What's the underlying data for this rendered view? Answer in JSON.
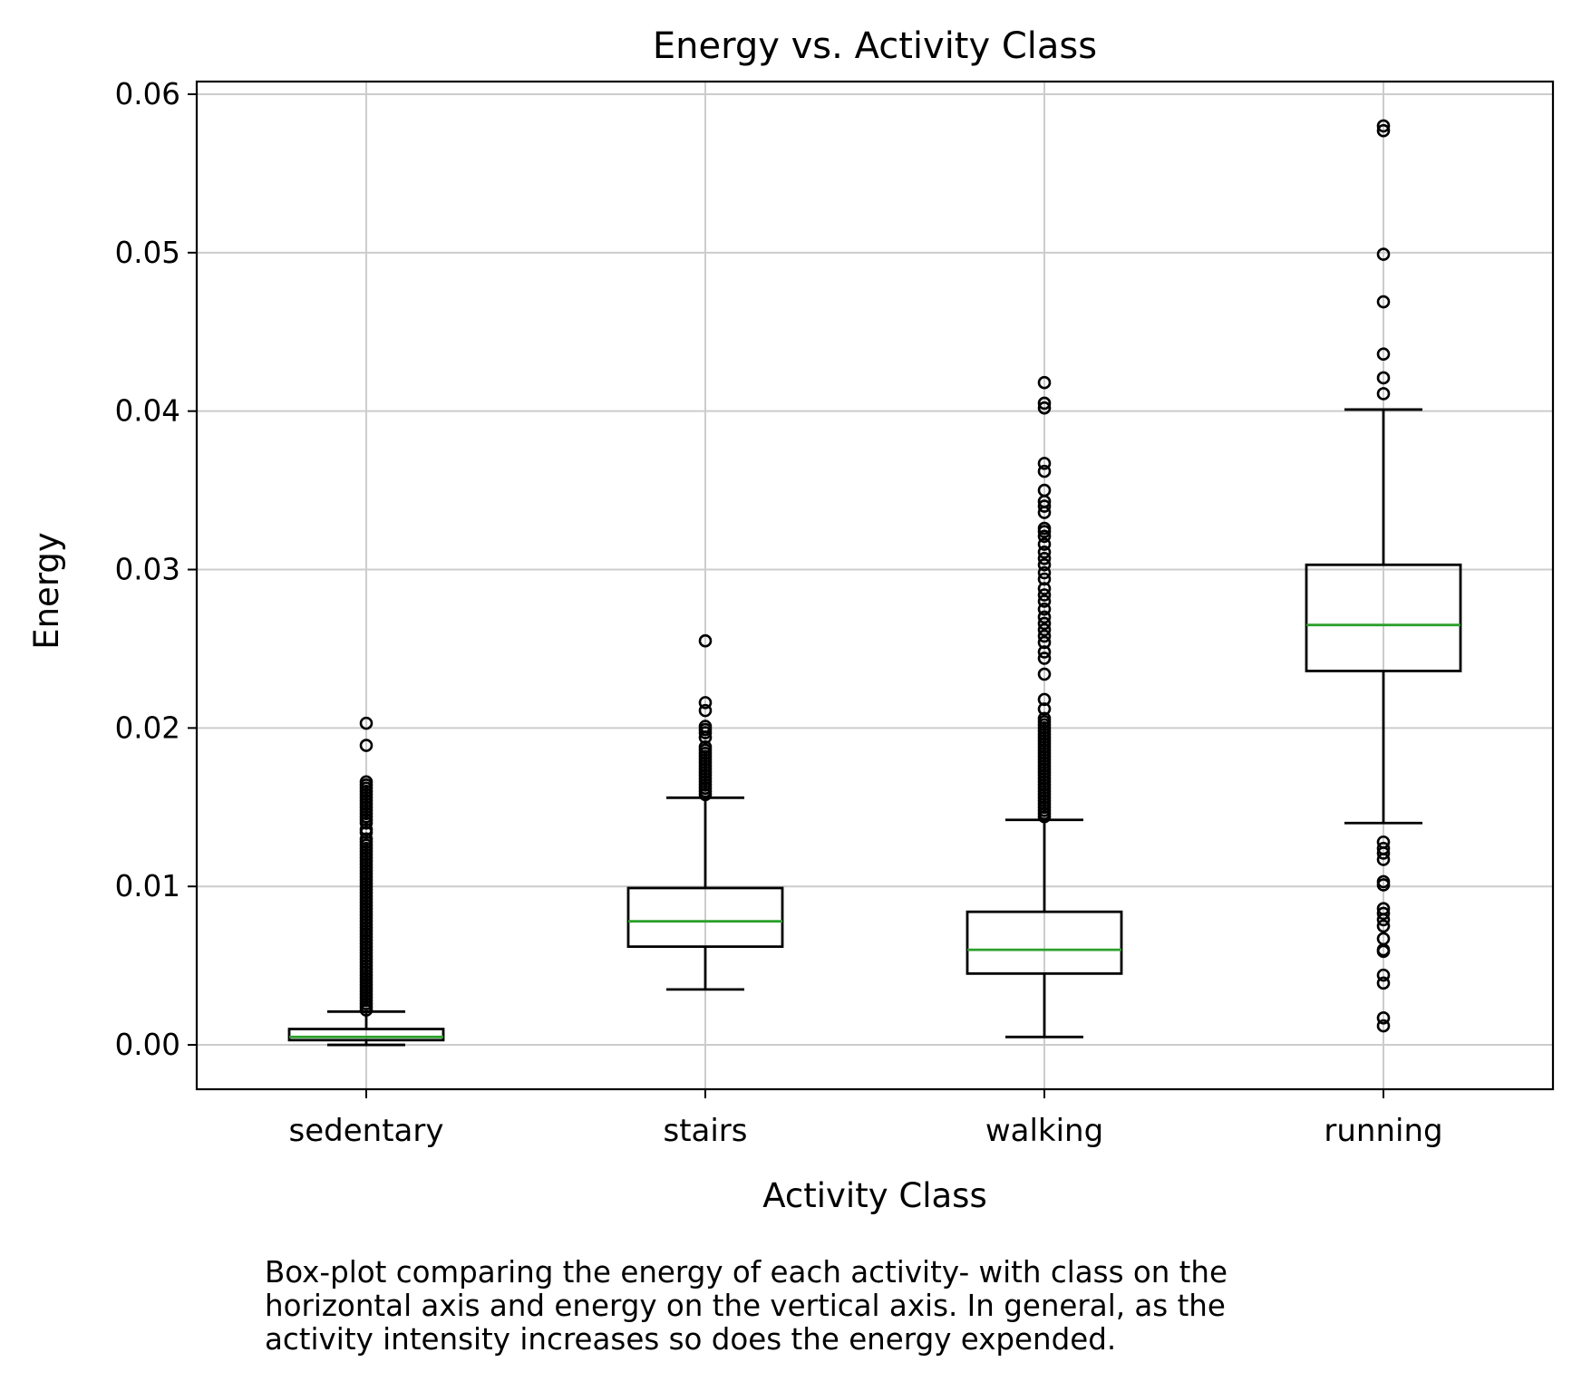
{
  "chart_data": {
    "type": "box",
    "title": "Energy vs. Activity Class",
    "xlabel": "Activity Class",
    "ylabel": "Energy",
    "ylim": [
      -0.0028,
      0.0608
    ],
    "yticks": [
      0.0,
      0.01,
      0.02,
      0.03,
      0.04,
      0.05,
      0.06
    ],
    "ytick_labels": [
      "0.00",
      "0.01",
      "0.02",
      "0.03",
      "0.04",
      "0.05",
      "0.06"
    ],
    "grid": true,
    "categories": [
      "sedentary",
      "stairs",
      "walking",
      "running"
    ],
    "boxes": [
      {
        "label": "sedentary",
        "whisker_low": 0.0,
        "q1": 0.0003,
        "median": 0.0005,
        "q3": 0.001,
        "whisker_high": 0.0021,
        "outliers": [
          0.0203,
          0.0189,
          0.0166,
          0.0164,
          0.0162,
          0.016,
          0.0158,
          0.0156,
          0.0154,
          0.0152,
          0.015,
          0.0148,
          0.0146,
          0.0144,
          0.0142,
          0.014,
          0.0136,
          0.0134,
          0.013,
          0.0128,
          0.0126,
          0.0124,
          0.0122,
          0.012,
          0.0118,
          0.0116,
          0.0114,
          0.0112,
          0.011,
          0.0108,
          0.0106,
          0.0104,
          0.0102,
          0.01,
          0.0098,
          0.0096,
          0.0094,
          0.0092,
          0.009,
          0.0088,
          0.0086,
          0.0084,
          0.0082,
          0.008,
          0.0078,
          0.0076,
          0.0074,
          0.0072,
          0.007,
          0.0068,
          0.0066,
          0.0064,
          0.0062,
          0.006,
          0.0058,
          0.0056,
          0.0054,
          0.0052,
          0.005,
          0.0048,
          0.0046,
          0.0044,
          0.0042,
          0.004,
          0.0038,
          0.0036,
          0.0034,
          0.0032,
          0.003,
          0.0028,
          0.0026,
          0.0024,
          0.0022
        ]
      },
      {
        "label": "stairs",
        "whisker_low": 0.0035,
        "q1": 0.0062,
        "median": 0.0078,
        "q3": 0.0099,
        "whisker_high": 0.0156,
        "outliers": [
          0.0255,
          0.0216,
          0.0211,
          0.0201,
          0.0199,
          0.0197,
          0.0194,
          0.0188,
          0.0186,
          0.0184,
          0.0182,
          0.018,
          0.0178,
          0.0176,
          0.0174,
          0.0172,
          0.017,
          0.0168,
          0.0166,
          0.0164,
          0.0162,
          0.016,
          0.0158
        ]
      },
      {
        "label": "walking",
        "whisker_low": 0.0005,
        "q1": 0.0045,
        "median": 0.006,
        "q3": 0.0084,
        "whisker_high": 0.0142,
        "outliers": [
          0.0418,
          0.0405,
          0.0402,
          0.0367,
          0.0362,
          0.035,
          0.0343,
          0.034,
          0.0336,
          0.0326,
          0.0324,
          0.0321,
          0.0316,
          0.0311,
          0.0307,
          0.0303,
          0.0298,
          0.0294,
          0.0288,
          0.0284,
          0.028,
          0.0275,
          0.027,
          0.0266,
          0.0262,
          0.0258,
          0.0254,
          0.0248,
          0.0244,
          0.0234,
          0.0218,
          0.0212,
          0.0206,
          0.0204,
          0.0202,
          0.02,
          0.0198,
          0.0196,
          0.0194,
          0.0192,
          0.019,
          0.0188,
          0.0186,
          0.0184,
          0.0182,
          0.018,
          0.0178,
          0.0176,
          0.0174,
          0.0172,
          0.017,
          0.0168,
          0.0166,
          0.0164,
          0.0162,
          0.016,
          0.0158,
          0.0156,
          0.0154,
          0.0152,
          0.015,
          0.0148,
          0.0146,
          0.0144
        ]
      },
      {
        "label": "running",
        "whisker_low": 0.014,
        "q1": 0.0236,
        "median": 0.0265,
        "q3": 0.0303,
        "whisker_high": 0.0401,
        "outliers": [
          0.058,
          0.0577,
          0.0499,
          0.0469,
          0.0436,
          0.0421,
          0.0411,
          0.0128,
          0.0124,
          0.0121,
          0.0117,
          0.0103,
          0.0101,
          0.0086,
          0.0083,
          0.0079,
          0.0075,
          0.0067,
          0.006,
          0.0059,
          0.0044,
          0.0039,
          0.0017,
          0.0012
        ]
      }
    ],
    "colors": {
      "box": "#000000",
      "median": "#2ca02c",
      "grid": "#cccccc"
    }
  },
  "caption": {
    "lines": [
      "Box-plot comparing the energy of each activity- with class on the",
      "horizontal axis and energy on the vertical axis. In general, as the",
      "activity intensity increases so does the energy expended."
    ]
  }
}
